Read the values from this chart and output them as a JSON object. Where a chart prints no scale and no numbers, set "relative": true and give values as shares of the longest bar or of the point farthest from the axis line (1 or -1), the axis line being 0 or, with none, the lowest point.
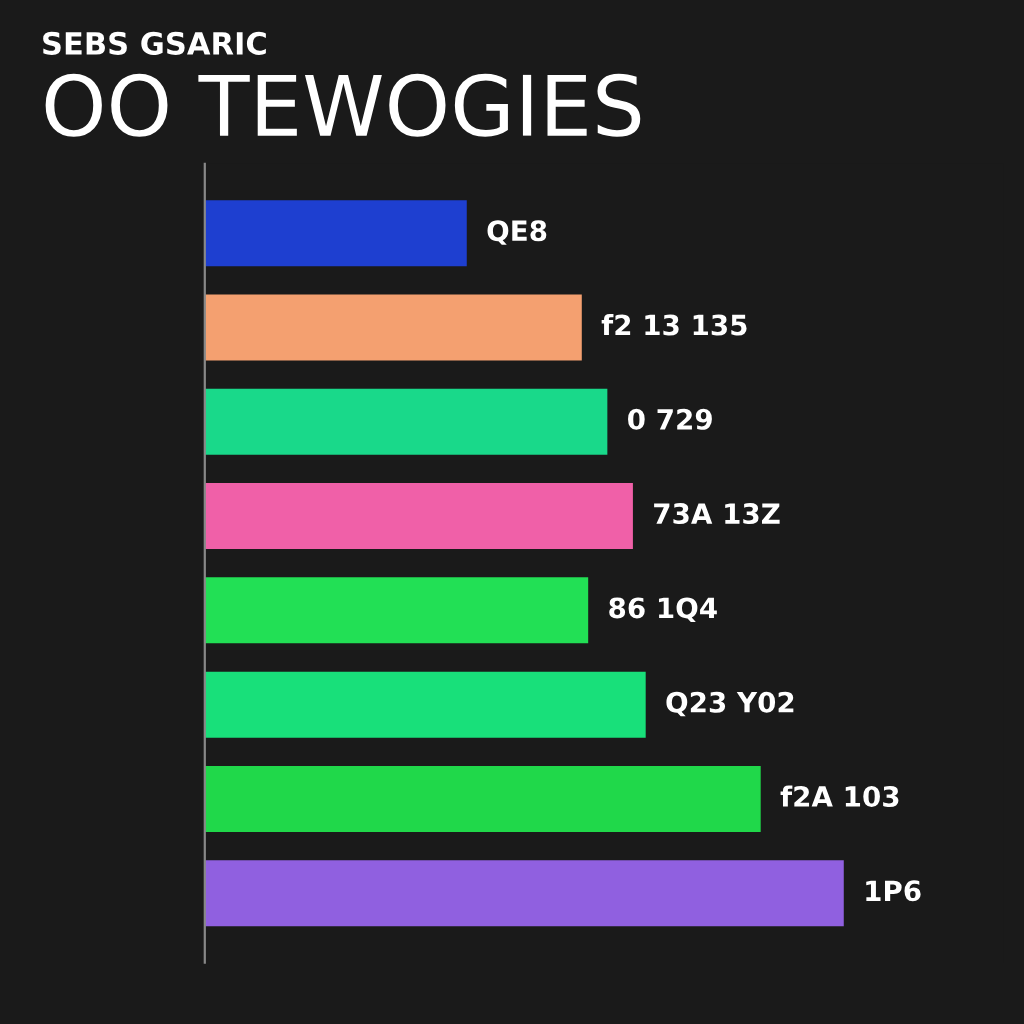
{
  "chart_data": {
    "type": "bar",
    "orientation": "horizontal",
    "relative": true,
    "subtitle": "SEBS GSARIC",
    "title": "OO TEWOGIES",
    "categories": [
      null,
      null,
      null,
      null,
      null,
      null,
      null,
      null
    ],
    "values": [
      0.41,
      0.59,
      0.63,
      0.67,
      0.6,
      0.69,
      0.87,
      1
    ],
    "colors": [
      "#1e3fd0",
      "#f4a070",
      "#19d98a",
      "#f060a8",
      "#22e055",
      "#18e07a",
      "#20d84a",
      "#9060e0"
    ],
    "annotations": [
      "QE8",
      "f2 13 135",
      "0 729",
      "73A 13Z",
      "86 1Q4",
      "Q23 Y02",
      "f2A 103",
      "1P6"
    ],
    "grid": false,
    "legend": false
  }
}
